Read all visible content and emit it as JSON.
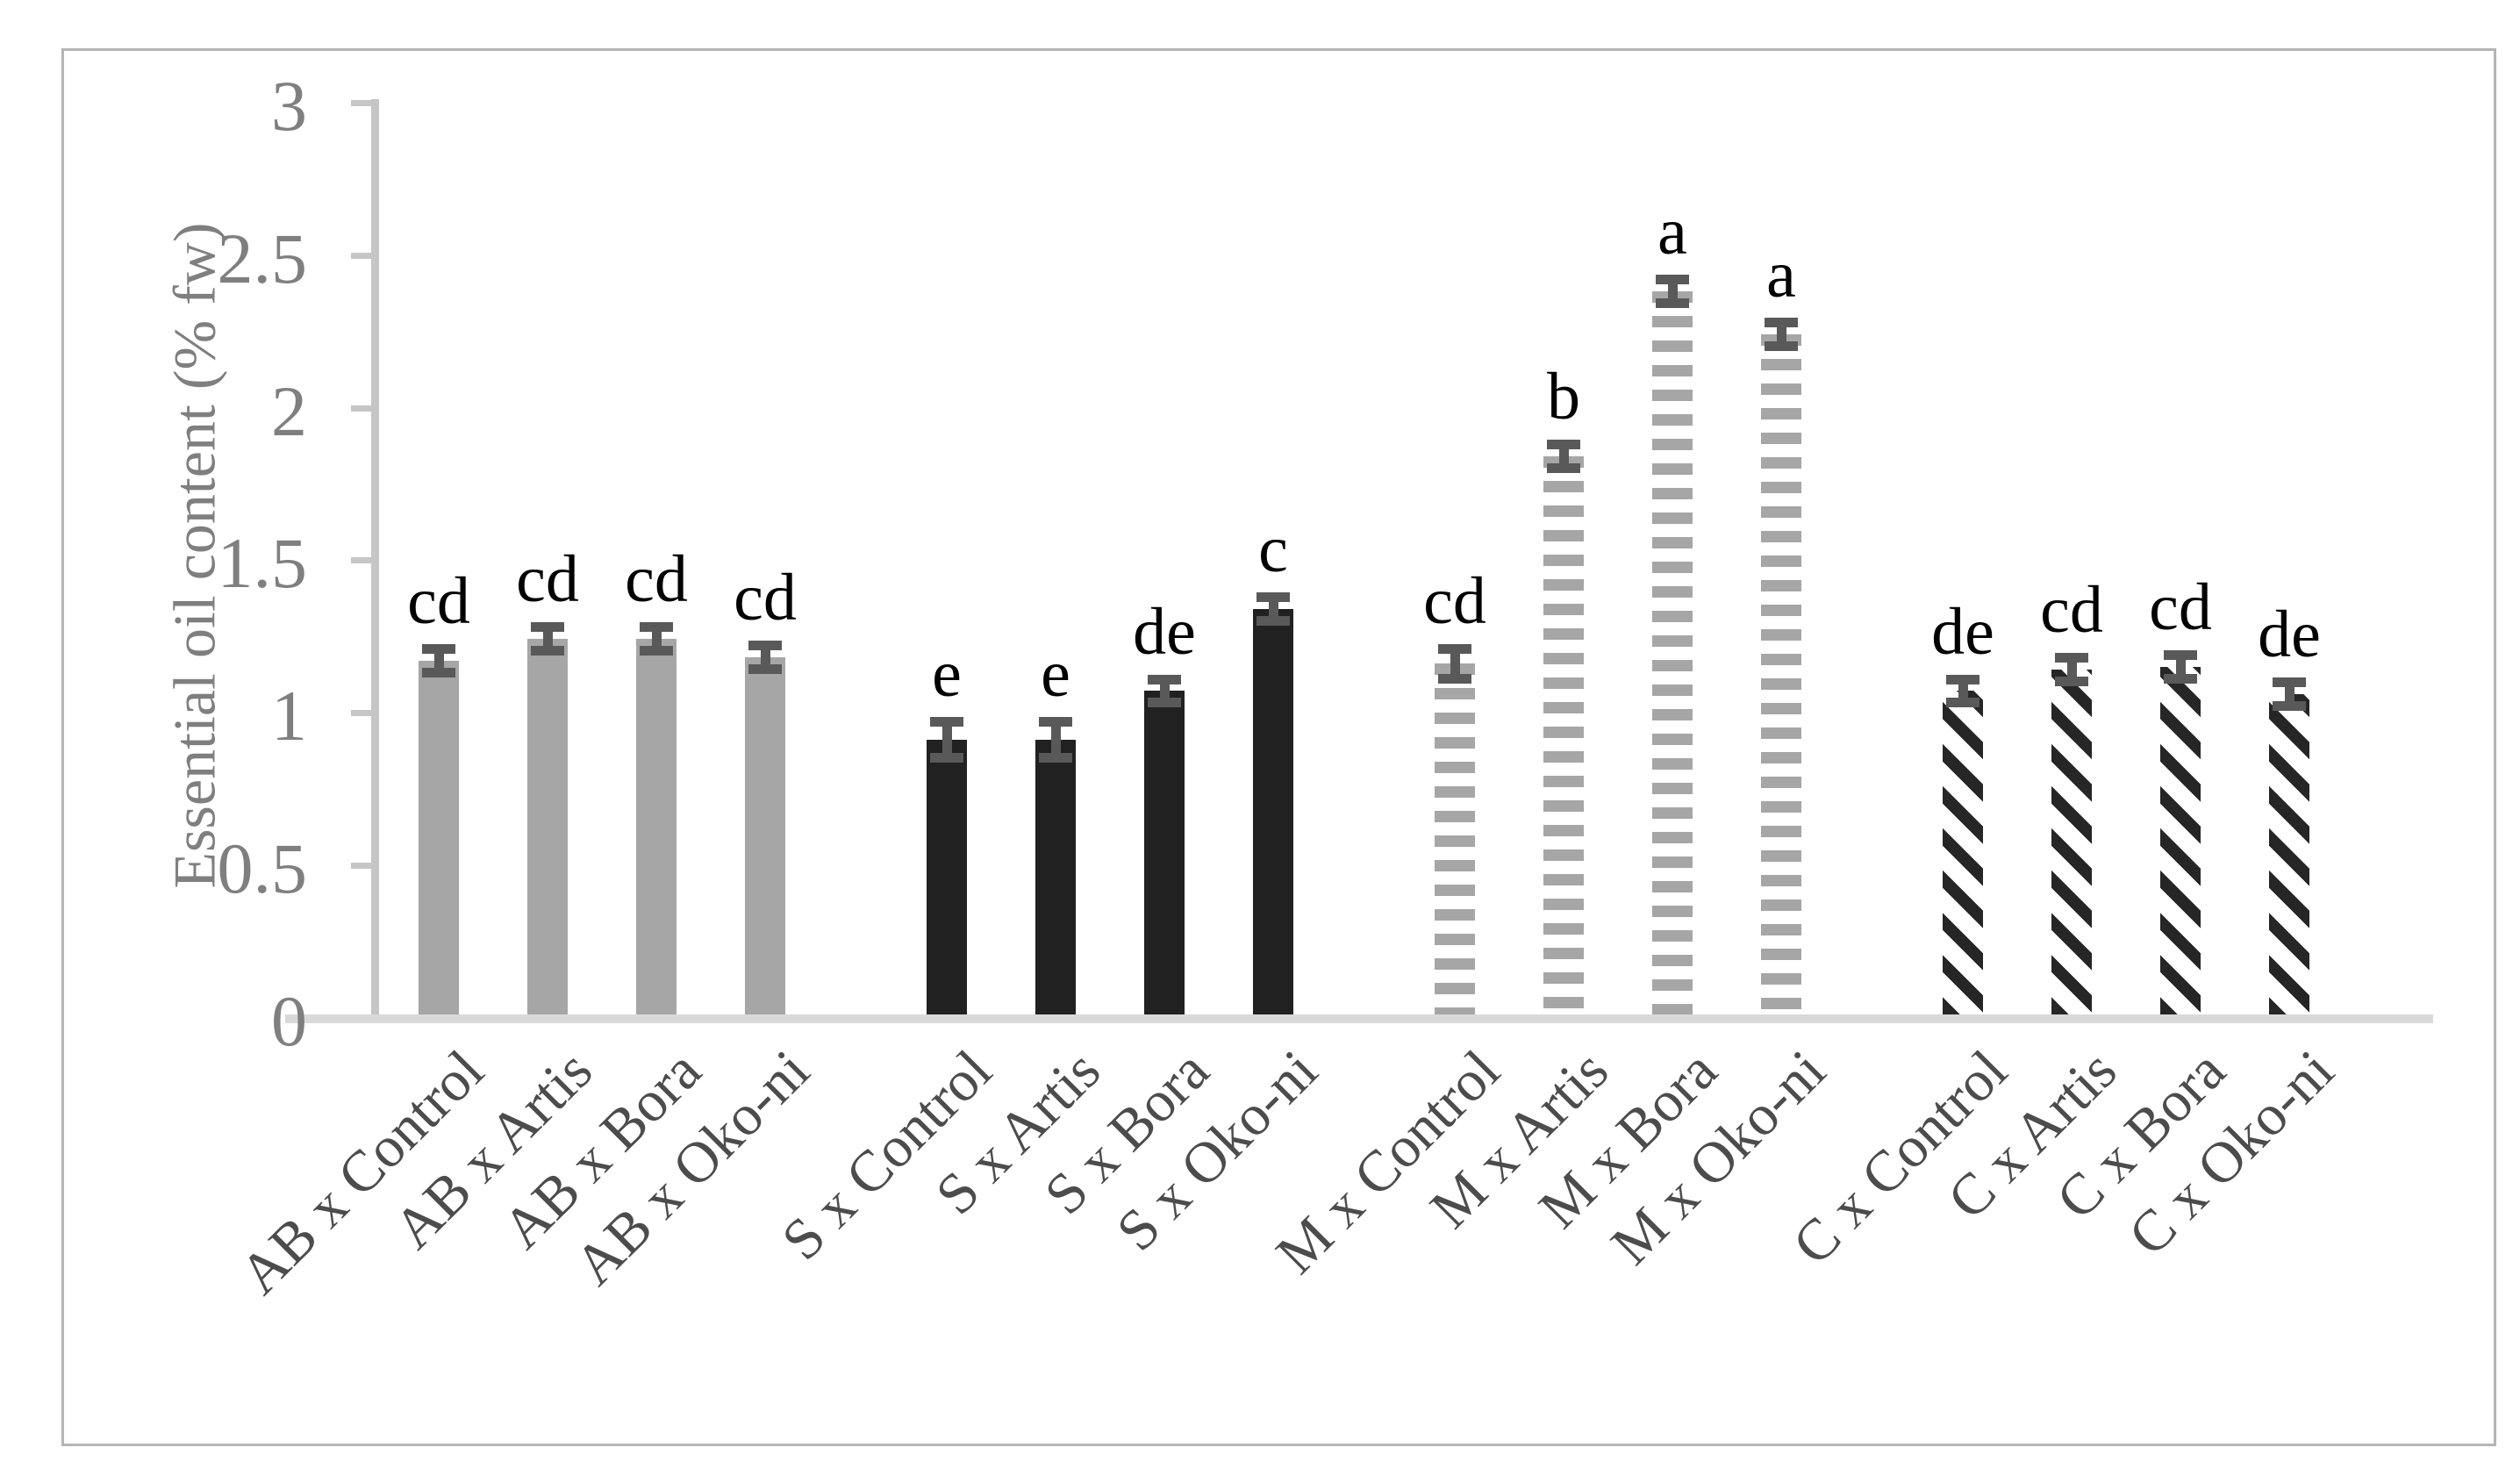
{
  "figure": {
    "border_color": "#b5b5b5",
    "background": "#ffffff"
  },
  "chart_data": {
    "type": "bar",
    "title": "",
    "xlabel": "",
    "ylabel": "Essential oil content (% fw)",
    "ylim": [
      0,
      3
    ],
    "grid": false,
    "legend_position": "none",
    "yticks": [
      {
        "v": 0,
        "label": "0"
      },
      {
        "v": 0.5,
        "label": "0.5"
      },
      {
        "v": 1,
        "label": "1"
      },
      {
        "v": 1.5,
        "label": "1.5"
      },
      {
        "v": 2,
        "label": "2"
      },
      {
        "v": 2.5,
        "label": "2.5"
      },
      {
        "v": 3,
        "label": "3"
      }
    ],
    "categories": [
      "AB x Control",
      "AB x Artis",
      "AB x Bora",
      "AB x Oko-ni",
      "S x Control",
      "S x Artis",
      "S x Bora",
      "S x Oko-ni",
      "M x Control",
      "M x Artis",
      "M x Bora",
      "M x Oko-ni",
      "C x Control",
      "C x Artis",
      "C x Bora",
      "C x Oko-ni"
    ],
    "series": [
      {
        "name": "Essential oil content (% fw)",
        "values": [
          1.16,
          1.23,
          1.23,
          1.17,
          0.9,
          0.9,
          1.06,
          1.33,
          1.15,
          1.83,
          2.37,
          2.23,
          1.06,
          1.13,
          1.14,
          1.05
        ]
      }
    ],
    "error_bars": [
      0.04,
      0.04,
      0.04,
      0.04,
      0.06,
      0.06,
      0.04,
      0.04,
      0.05,
      0.04,
      0.04,
      0.04,
      0.04,
      0.04,
      0.04,
      0.04
    ],
    "significance_letters": [
      "cd",
      "cd",
      "cd",
      "cd",
      "e",
      "e",
      "de",
      "c",
      "cd",
      "b",
      "a",
      "a",
      "de",
      "cd",
      "cd",
      "de"
    ],
    "bar_patterns": [
      "solid-gray",
      "solid-gray",
      "solid-gray",
      "solid-gray",
      "solid-black",
      "solid-black",
      "solid-black",
      "solid-black",
      "h-stripes",
      "h-stripes",
      "h-stripes",
      "h-stripes",
      "d-stripes",
      "d-stripes",
      "d-stripes",
      "d-stripes"
    ],
    "pattern_groups": [
      {
        "prefix": "AB",
        "pattern": "solid-gray",
        "color": "#a6a6a6"
      },
      {
        "prefix": "S",
        "pattern": "solid-black",
        "color": "#212121"
      },
      {
        "prefix": "M",
        "pattern": "h-stripes",
        "color": "#a6a6a6"
      },
      {
        "prefix": "C",
        "pattern": "d-stripes",
        "color": "#262626"
      }
    ],
    "colors": {
      "error_bar": "#595959",
      "axis_line": "#c6c6c6",
      "baseline": "#d9d9d9",
      "tick_text": "#7f7f7f",
      "x_label_text": "#4c4c4c",
      "letter_text": "#000000"
    }
  }
}
